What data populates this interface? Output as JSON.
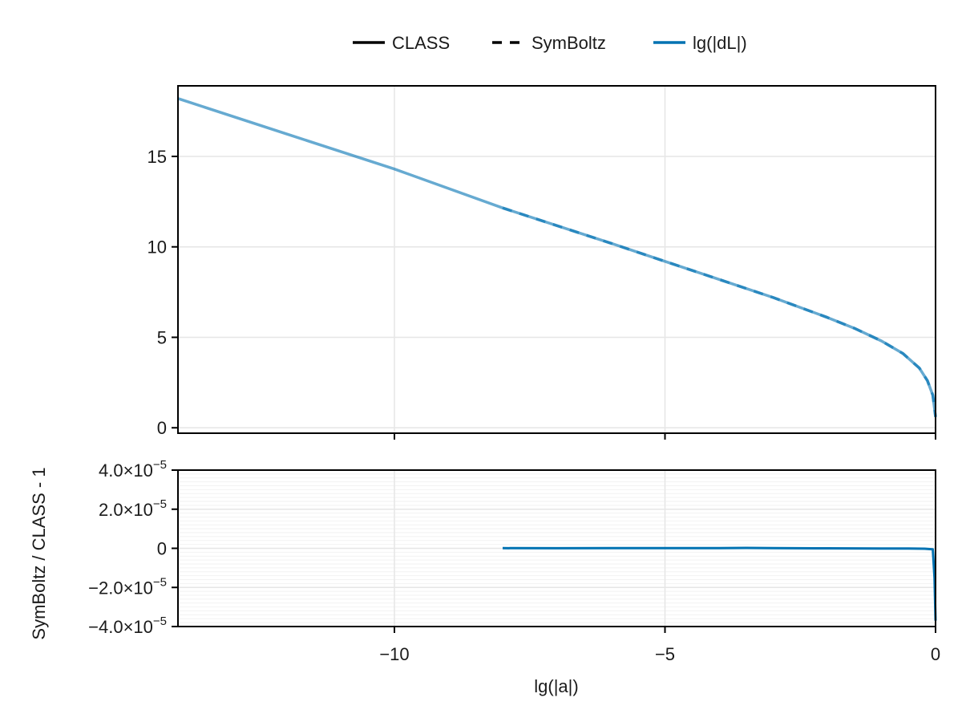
{
  "legend": {
    "items": [
      {
        "label": "CLASS",
        "color": "#000000",
        "style": "solid"
      },
      {
        "label": "SymBoltz",
        "color": "#000000",
        "style": "dashed"
      },
      {
        "label": "lg(|dL|)",
        "color": "#0072b2",
        "style": "solid"
      }
    ]
  },
  "colors": {
    "series": "#0072b2",
    "series_light": "#6aaed6",
    "grid": "#e6e6e6",
    "frame": "#000000"
  },
  "chart_data": [
    {
      "type": "line",
      "title": "",
      "xlabel": "",
      "ylabel": "",
      "xlim": [
        -14,
        0
      ],
      "ylim": [
        -0.3,
        18.9
      ],
      "xticks": [
        -10,
        -5,
        0
      ],
      "yticks": [
        0,
        5,
        10,
        15
      ],
      "ytick_labels": [
        "0",
        "5",
        "10",
        "15"
      ],
      "grid": true,
      "legend_position": "top-center, outside",
      "series": [
        {
          "name": "CLASS",
          "style": "solid",
          "x": [
            -14,
            -12,
            -10,
            -8,
            -6,
            -5,
            -4,
            -3,
            -2,
            -1.5,
            -1,
            -0.6,
            -0.3,
            -0.15,
            -0.05,
            0
          ],
          "y": [
            18.2,
            16.25,
            14.3,
            12.15,
            10.2,
            9.2,
            8.2,
            7.2,
            6.1,
            5.5,
            4.8,
            4.1,
            3.3,
            2.6,
            1.8,
            0.6
          ]
        },
        {
          "name": "SymBoltz",
          "style": "dashed",
          "x": [
            -8,
            -6,
            -5,
            -4,
            -3,
            -2,
            -1.5,
            -1,
            -0.6,
            -0.3,
            -0.15,
            -0.05,
            0
          ],
          "y": [
            12.15,
            10.2,
            9.2,
            8.2,
            7.2,
            6.1,
            5.5,
            4.8,
            4.1,
            3.3,
            2.6,
            1.8,
            0.6
          ]
        }
      ]
    },
    {
      "type": "line",
      "title": "",
      "xlabel": "lg(|a|)",
      "ylabel": "SymBoltz / CLASS - 1",
      "xlim": [
        -14,
        0
      ],
      "ylim": [
        -4e-05,
        4e-05
      ],
      "xticks": [
        -10,
        -5,
        0
      ],
      "xtick_labels": [
        "−10",
        "−5",
        "0"
      ],
      "yticks": [
        -4e-05,
        -2e-05,
        0,
        2e-05,
        4e-05
      ],
      "ytick_labels": [
        {
          "mant": "−4.0×10",
          "exp": "−5"
        },
        {
          "mant": "−2.0×10",
          "exp": "−5"
        },
        {
          "mant": "0",
          "exp": ""
        },
        {
          "mant": "2.0×10",
          "exp": "−5"
        },
        {
          "mant": "4.0×10",
          "exp": "−5"
        }
      ],
      "grid": true,
      "minor_grid": true,
      "series": [
        {
          "name": "SymBoltz / CLASS - 1",
          "x": [
            -8,
            -7,
            -6,
            -5,
            -4,
            -3.5,
            -3,
            -2,
            -1,
            -0.5,
            -0.2,
            -0.05,
            -0.02,
            0
          ],
          "y": [
            1e-07,
            5e-08,
            1e-07,
            1e-07,
            1e-07,
            2e-07,
            1e-07,
            0.0,
            -1e-07,
            -1e-07,
            -2e-07,
            -5e-07,
            -1.5e-05,
            -3.7e-05
          ]
        }
      ]
    }
  ]
}
